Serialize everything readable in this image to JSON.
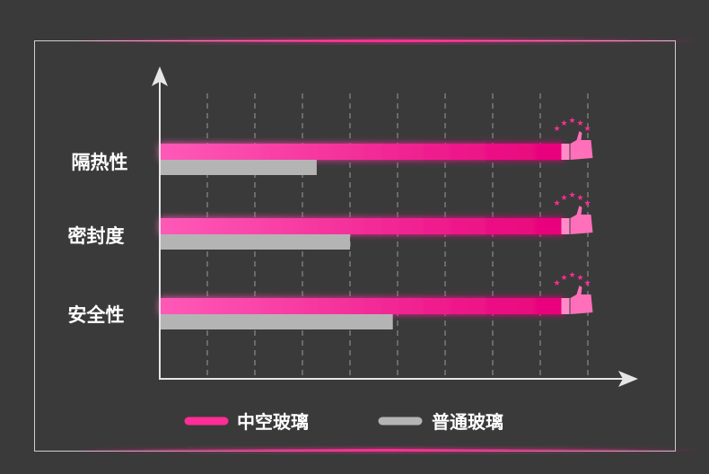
{
  "chart_data": {
    "type": "bar",
    "orientation": "horizontal",
    "categories": [
      "隔热性",
      "密封度",
      "安全性"
    ],
    "series": [
      {
        "name": "中空玻璃",
        "values": [
          8.5,
          8.5,
          8.5
        ],
        "color": "#ff3fa4"
      },
      {
        "name": "普通玻璃",
        "values": [
          3.3,
          4.0,
          4.9
        ],
        "color": "#b4b4b4"
      }
    ],
    "xlim": [
      0,
      10
    ],
    "grid": true,
    "legend": "bottom",
    "marker_icon": "thumbs-up-with-stars-icon",
    "colors": {
      "background": "#3a3a3a",
      "accent": "#ff2d95",
      "axis": "#e6e6e6"
    }
  }
}
